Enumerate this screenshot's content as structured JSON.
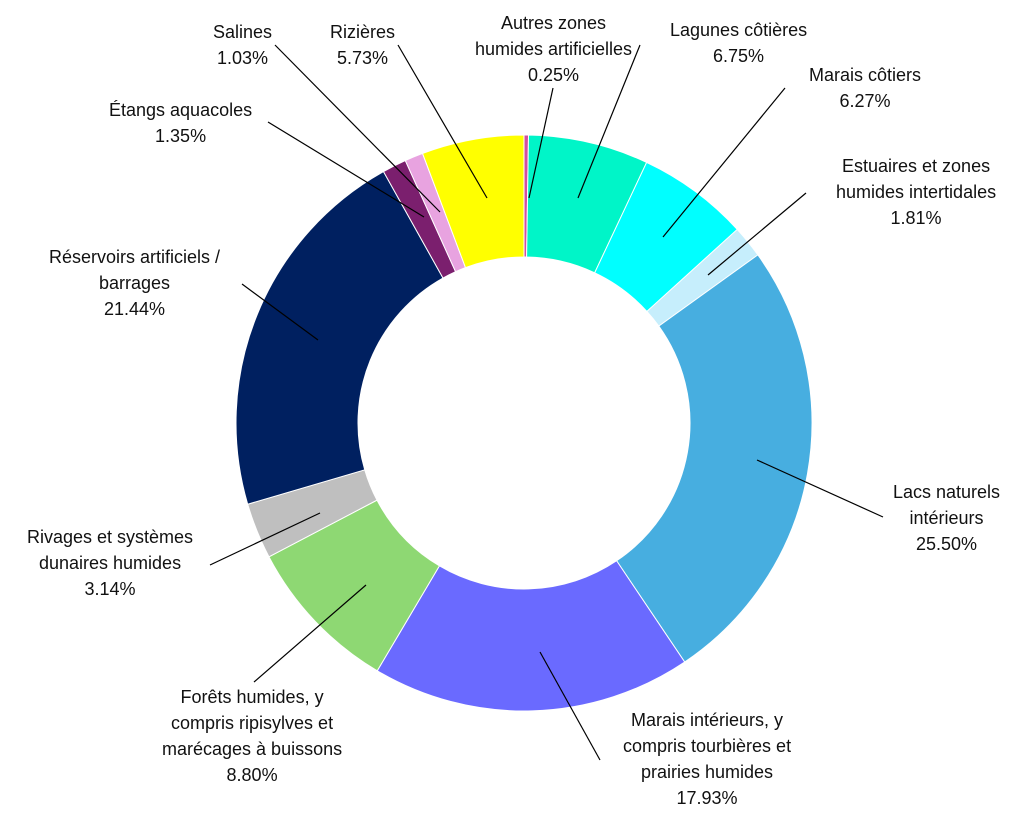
{
  "chart_data": {
    "type": "pie",
    "donut": true,
    "title": "",
    "start": "top",
    "direction": "clockwise",
    "slices": [
      {
        "label": "Autres zones humides artificielles",
        "value": 0.25,
        "text": "0.25%",
        "color": "#d14fa0"
      },
      {
        "label": "Lagunes côtières",
        "value": 6.75,
        "text": "6.75%",
        "color": "#00f5c8"
      },
      {
        "label": "Marais côtiers",
        "value": 6.27,
        "text": "6.27%",
        "color": "#00ffff"
      },
      {
        "label": "Estuaires et zones humides intertidales",
        "value": 1.81,
        "text": "1.81%",
        "color": "#c6eefc"
      },
      {
        "label": "Lacs naturels intérieurs",
        "value": 25.5,
        "text": "25.50%",
        "color": "#47aee0"
      },
      {
        "label": "Marais intérieurs, y compris tourbières et prairies humides",
        "value": 17.93,
        "text": "17.93%",
        "color": "#6a6aff"
      },
      {
        "label": "Forêts humides, y compris ripisylves et marécages à buissons",
        "value": 8.8,
        "text": "8.80%",
        "color": "#8ed873"
      },
      {
        "label": "Rivages et systèmes dunaires humides",
        "value": 3.14,
        "text": "3.14%",
        "color": "#bfbfbf"
      },
      {
        "label": "Réservoirs artificiels / barrages",
        "value": 21.44,
        "text": "21.44%",
        "color": "#002060"
      },
      {
        "label": "Étangs aquacoles",
        "value": 1.35,
        "text": "1.35%",
        "color": "#7b1f6e"
      },
      {
        "label": "Salines",
        "value": 1.03,
        "text": "1.03%",
        "color": "#e8a3e0"
      },
      {
        "label": "Rizières",
        "value": 5.73,
        "text": "5.73%",
        "color": "#ffff00"
      }
    ]
  },
  "labels": [
    {
      "lines": [
        "Autres zones",
        "humides artificielles"
      ],
      "value": "0.25%"
    },
    {
      "lines": [
        "Lagunes côtières"
      ],
      "value": "6.75%"
    },
    {
      "lines": [
        "Marais côtiers"
      ],
      "value": "6.27%"
    },
    {
      "lines": [
        "Estuaires et zones",
        "humides intertidales"
      ],
      "value": "1.81%"
    },
    {
      "lines": [
        "Lacs naturels",
        "intérieurs"
      ],
      "value": "25.50%"
    },
    {
      "lines": [
        "Marais intérieurs, y",
        "compris tourbières et",
        "prairies humides"
      ],
      "value": "17.93%"
    },
    {
      "lines": [
        "Forêts humides, y",
        "compris ripisylves et",
        "marécages à buissons"
      ],
      "value": "8.80%"
    },
    {
      "lines": [
        "Rivages et systèmes",
        "dunaires humides"
      ],
      "value": "3.14%"
    },
    {
      "lines": [
        "Réservoirs artificiels /",
        "barrages"
      ],
      "value": "21.44%"
    },
    {
      "lines": [
        "Étangs aquacoles"
      ],
      "value": "1.35%"
    },
    {
      "lines": [
        "Salines"
      ],
      "value": "1.03%"
    },
    {
      "lines": [
        "Rizières"
      ],
      "value": "5.73%"
    }
  ]
}
